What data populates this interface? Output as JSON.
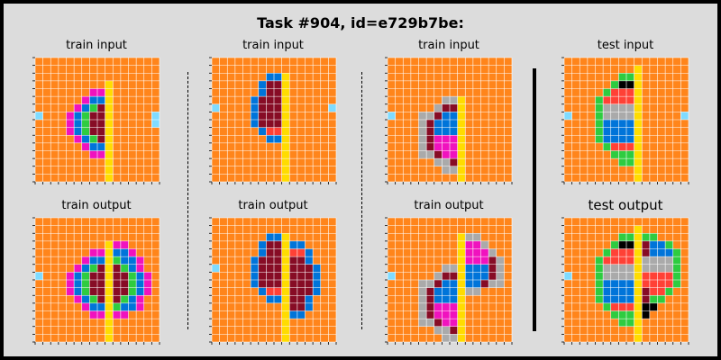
{
  "title": "Task #904, id=e729b7be:",
  "colors": {
    "0": "#000000",
    "1": "#0074D9",
    "2": "#FF4136",
    "3": "#2ECC40",
    "4": "#FFDC00",
    "5": "#AAAAAA",
    "6": "#F012BE",
    "7": "#FF851B",
    "8": "#7FDBFF",
    "9": "#870C25"
  },
  "panels": [
    {
      "label": "train input",
      "grid": [
        "7777777777777777",
        "7777777777777777",
        "7777777777777777",
        "7777777774777777",
        "7777777664777777",
        "7777776114777777",
        "7777761394777777",
        "8777613994777778",
        "7777613994777778",
        "7777613994777777",
        "7777761394777777",
        "7777776114777777",
        "7777777664777777",
        "7777777774777777",
        "7777777774777777",
        "7777777774777777"
      ]
    },
    {
      "label": "train input",
      "grid": [
        "7777777777777777",
        "7777777777777777",
        "7777777114777777",
        "7777771994777777",
        "7777771994777777",
        "7777719994777777",
        "8777719994777778",
        "7777719994777777",
        "7777719994777777",
        "7777771224777777",
        "7777777114777777",
        "7777777774777777",
        "7777777774777777",
        "7777777774777777",
        "7777777774777777",
        "7777777774777777"
      ]
    },
    {
      "label": "train input",
      "grid": [
        "7777777777777777",
        "7777777777777777",
        "7777777777777777",
        "7777777777777777",
        "7777777777777777",
        "7777777554777777",
        "7777775994777777",
        "8777559114777777",
        "7777591114777777",
        "7777591114777777",
        "7777596664777777",
        "7777596664777777",
        "7777559664777777",
        "7777775594777777",
        "7777777554777777",
        "7777777774777777"
      ]
    },
    {
      "label": "test input",
      "grid": [
        "7777777777777777",
        "7777777774777777",
        "7777777334777777",
        "7777773004777777",
        "7777732224777777",
        "7777322224777777",
        "7777355554777777",
        "8777355554777778",
        "7777311114777777",
        "7777311114777777",
        "7777311114777777",
        "7777732224777777",
        "7777773334777777",
        "7777777334777777",
        "7777777774777777",
        "7777777774777777"
      ]
    },
    {
      "label": "train output",
      "grid": [
        "7777777777777777",
        "7777777777777777",
        "7777777777777777",
        "7777777774667777",
        "7777777664116777",
        "7777776114311677",
        "7777761394931677",
        "8777613994993167",
        "7777613994993167",
        "7777613994993167",
        "7777761394931677",
        "7777776114311677",
        "7777777664667777",
        "7777777774777777",
        "7777777774777777",
        "7777777774777777"
      ]
    },
    {
      "label": "train output",
      "grid": [
        "7777777777777777",
        "7777777777777777",
        "7777777114777777",
        "7777771994117777",
        "7777771994221777",
        "7777719994991777",
        "8777719994999177",
        "7777719994999177",
        "7777719994999177",
        "7777771224999177",
        "7777777114991777",
        "7777777774991777",
        "7777777774117777",
        "7777777774777777",
        "7777777774777777",
        "7777777774777777"
      ]
    },
    {
      "label": "train output",
      "grid": [
        "7777777777777777",
        "7777777777777777",
        "7777777774557777",
        "7777777774665777",
        "7777777774666577",
        "7777777774666957",
        "7777777554111957",
        "8777775994111957",
        "7777559114119557",
        "7777591114557777",
        "7777591114777777",
        "7777596664777777",
        "7777596664777777",
        "7777559664777777",
        "7777775594777777",
        "7777777554777777"
      ]
    },
    {
      "label": "test output",
      "grid": [
        "7777777777777777",
        "7777777774777777",
        "7777777334337777",
        "7777773004911377",
        "7777732224911137",
        "7777322224555537",
        "7777355554555537",
        "8777355554222237",
        "7777311114222237",
        "7777311114922377",
        "7777311114933777",
        "7777732224007777",
        "7777773334077777",
        "7777777334777777",
        "7777777774777777",
        "7777777774777777"
      ]
    }
  ]
}
